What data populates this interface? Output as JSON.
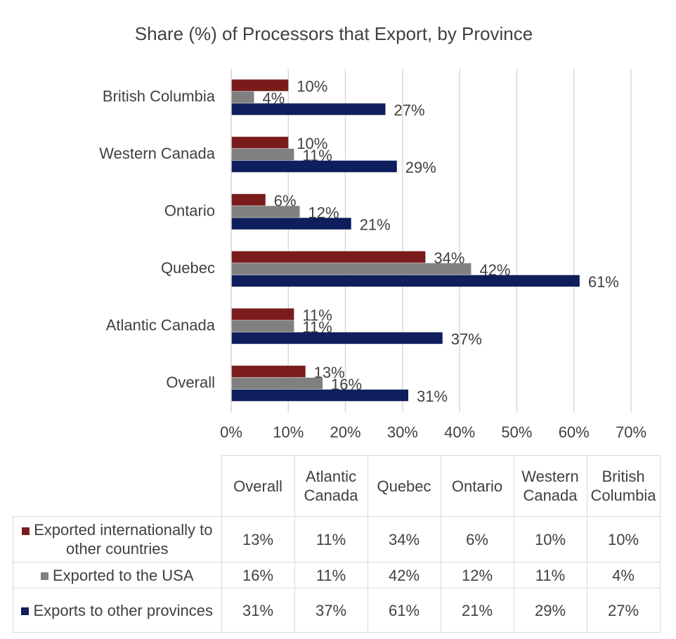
{
  "chart_data": {
    "type": "hbar",
    "title": "Share (%) of Processors that Export, by Province",
    "categories": [
      "Overall",
      "Atlantic Canada",
      "Quebec",
      "Ontario",
      "Western Canada",
      "British Columbia"
    ],
    "series": [
      {
        "name": "Exported internationally to other countries",
        "color": "#7a1c1c",
        "values": [
          13,
          11,
          34,
          6,
          10,
          10
        ],
        "value_labels": [
          "13%",
          "11%",
          "34%",
          "6%",
          "10%",
          "10%"
        ]
      },
      {
        "name": "Exported to the USA",
        "color": "#808080",
        "values": [
          16,
          11,
          42,
          12,
          11,
          4
        ],
        "value_labels": [
          "16%",
          "11%",
          "42%",
          "12%",
          "11%",
          "4%"
        ]
      },
      {
        "name": "Exports to other provinces",
        "color": "#0f1e5c",
        "values": [
          31,
          37,
          61,
          21,
          29,
          27
        ],
        "value_labels": [
          "31%",
          "37%",
          "61%",
          "21%",
          "29%",
          "27%"
        ]
      }
    ],
    "xlim": [
      0,
      70
    ],
    "xticks": [
      {
        "value": 0,
        "label": "0%"
      },
      {
        "value": 10,
        "label": "10%"
      },
      {
        "value": 20,
        "label": "20%"
      },
      {
        "value": 30,
        "label": "30%"
      },
      {
        "value": 40,
        "label": "40%"
      },
      {
        "value": 50,
        "label": "50%"
      },
      {
        "value": 60,
        "label": "60%"
      },
      {
        "value": 70,
        "label": "70%"
      }
    ],
    "grid": true
  }
}
